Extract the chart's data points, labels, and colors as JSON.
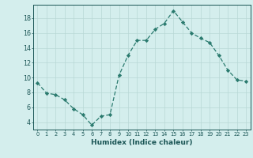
{
  "x": [
    0,
    1,
    2,
    3,
    4,
    5,
    6,
    7,
    8,
    9,
    10,
    11,
    12,
    13,
    14,
    15,
    16,
    17,
    18,
    19,
    20,
    21,
    22,
    23
  ],
  "y": [
    9.3,
    7.9,
    7.7,
    7.0,
    5.8,
    5.0,
    3.6,
    4.8,
    5.0,
    10.3,
    13.0,
    15.0,
    15.0,
    16.5,
    17.3,
    19.0,
    17.5,
    16.0,
    15.3,
    14.7,
    13.0,
    11.0,
    9.7,
    9.5
  ],
  "line_color": "#2a7a6e",
  "marker": "D",
  "marker_size": 2.2,
  "bg_color": "#d4eeed",
  "grid_color": "#b8d8d6",
  "xlabel": "Humidex (Indice chaleur)",
  "xlim": [
    -0.5,
    23.5
  ],
  "ylim": [
    3.0,
    19.8
  ],
  "yticks": [
    4,
    6,
    8,
    10,
    12,
    14,
    16,
    18
  ],
  "xticks": [
    0,
    1,
    2,
    3,
    4,
    5,
    6,
    7,
    8,
    9,
    10,
    11,
    12,
    13,
    14,
    15,
    16,
    17,
    18,
    19,
    20,
    21,
    22,
    23
  ],
  "tick_color": "#1a5555",
  "axis_color": "#1a5555",
  "xlabel_fontsize": 6.5,
  "ytick_fontsize": 5.8,
  "xtick_fontsize": 4.8,
  "linewidth": 0.9
}
